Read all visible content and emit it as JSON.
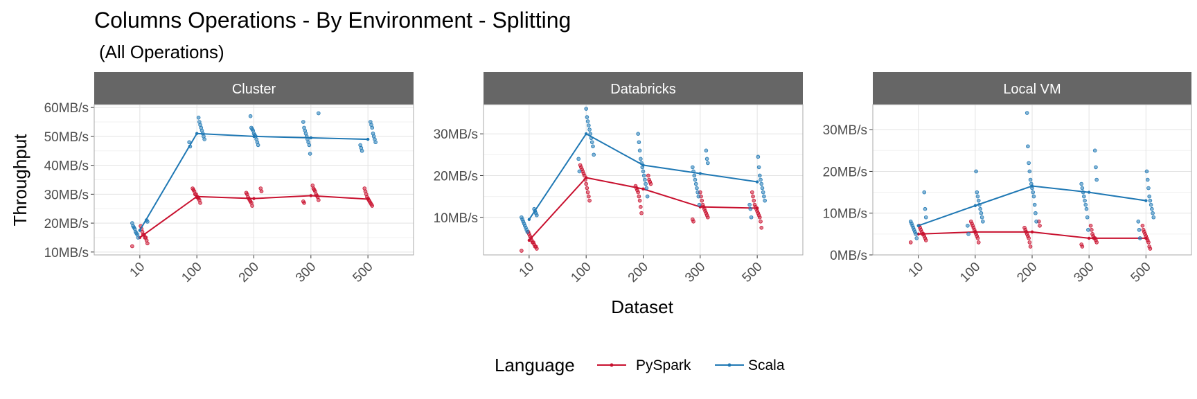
{
  "title": "Columns Operations - By Environment - Splitting",
  "subtitle": "(All Operations)",
  "y_axis_title": "Throughput",
  "x_axis_title": "Dataset",
  "legend": {
    "title": "Language",
    "items": [
      {
        "label": "PySpark",
        "color": "#c8102e"
      },
      {
        "label": "Scala",
        "color": "#1f78b4"
      }
    ]
  },
  "chart_data": [
    {
      "type": "line",
      "panel": "Cluster",
      "categories": [
        "10",
        "100",
        "200",
        "300",
        "500"
      ],
      "ylim": [
        9,
        61
      ],
      "yticks": [
        10,
        20,
        30,
        40,
        50,
        60
      ],
      "ytick_labels": [
        "10MB/s",
        "20MB/s",
        "30MB/s",
        "40MB/s",
        "50MB/s",
        "60MB/s"
      ],
      "grid": true,
      "series": [
        {
          "name": "PySpark",
          "color": "#c8102e",
          "mean": [
            15,
            29.2,
            28.5,
            29.5,
            28.3
          ],
          "points": [
            [
              12,
              13,
              14,
              15,
              15,
              16,
              16,
              17,
              18,
              19
            ],
            [
              27,
              28,
              28.5,
              29,
              29,
              30,
              30,
              31,
              31.5,
              32
            ],
            [
              26,
              27,
              27.5,
              28,
              28.5,
              29,
              30,
              30.5,
              31,
              32
            ],
            [
              27,
              27.5,
              28,
              29,
              29.5,
              30,
              31,
              31.5,
              32,
              33
            ],
            [
              26,
              26.5,
              27,
              27.5,
              28,
              28.5,
              29,
              30,
              31,
              32
            ]
          ]
        },
        {
          "name": "Scala",
          "color": "#1f78b4",
          "mean": [
            17.5,
            51,
            50,
            49.5,
            49
          ],
          "points": [
            [
              15,
              16,
              16.5,
              17,
              18,
              18.5,
              19,
              20,
              20.5,
              21
            ],
            [
              46.5,
              48,
              49,
              50,
              51,
              52,
              53,
              54,
              55,
              56.5
            ],
            [
              47,
              48,
              49,
              50,
              50.5,
              51,
              52,
              52.5,
              53,
              57
            ],
            [
              44,
              47,
              48,
              49,
              50,
              51,
              52,
              53,
              55,
              58
            ],
            [
              45,
              46,
              47,
              48,
              49,
              50,
              51,
              53,
              54,
              55
            ]
          ]
        }
      ]
    },
    {
      "type": "line",
      "panel": "Databricks",
      "categories": [
        "10",
        "100",
        "200",
        "300",
        "500"
      ],
      "ylim": [
        1,
        37
      ],
      "yticks": [
        10,
        20,
        30
      ],
      "ytick_labels": [
        "10MB/s",
        "20MB/s",
        "30MB/s"
      ],
      "grid": true,
      "series": [
        {
          "name": "PySpark",
          "color": "#c8102e",
          "mean": [
            4.5,
            19.5,
            16.8,
            12.5,
            12.2
          ],
          "points": [
            [
              2,
              2.5,
              3,
              3,
              3.5,
              4,
              4,
              4.5,
              5,
              5.5,
              6,
              6.5
            ],
            [
              14,
              15,
              16,
              17,
              18,
              19,
              20,
              20.5,
              21,
              21.5,
              22,
              22.5
            ],
            [
              11,
              12.5,
              14,
              15,
              16,
              16.5,
              17,
              17.5,
              18,
              18.5,
              19,
              20
            ],
            [
              9,
              9.5,
              10,
              10.5,
              11,
              11.5,
              12,
              12.5,
              13,
              14,
              15,
              16
            ],
            [
              7.5,
              9,
              10,
              10.5,
              11,
              11.5,
              12,
              12.5,
              13,
              14,
              15,
              16
            ]
          ]
        },
        {
          "name": "Scala",
          "color": "#1f78b4",
          "mean": [
            9.5,
            30,
            22.5,
            20.5,
            18.5
          ],
          "points": [
            [
              6.5,
              7,
              7.5,
              8,
              8.5,
              9,
              9.5,
              10,
              10.5,
              11,
              11.5,
              12
            ],
            [
              21,
              24,
              25,
              27,
              28,
              29,
              30,
              31,
              32,
              33,
              34,
              36
            ],
            [
              15,
              17,
              18,
              19,
              20,
              21,
              22,
              23,
              24,
              26,
              28,
              30
            ],
            [
              13,
              15,
              16,
              17,
              18,
              19,
              20,
              21,
              22,
              23,
              24,
              26
            ],
            [
              10,
              12,
              13,
              14,
              15,
              16,
              17,
              18,
              19,
              20,
              22,
              24.5
            ]
          ]
        }
      ]
    },
    {
      "type": "line",
      "panel": "Local VM",
      "categories": [
        "10",
        "100",
        "200",
        "300",
        "500"
      ],
      "ylim": [
        0,
        36
      ],
      "yticks": [
        0,
        10,
        20,
        30
      ],
      "ytick_labels": [
        "0MB/s",
        "10MB/s",
        "20MB/s",
        "30MB/s"
      ],
      "grid": true,
      "series": [
        {
          "name": "PySpark",
          "color": "#c8102e",
          "mean": [
            5,
            5.5,
            5.5,
            4,
            4
          ],
          "points": [
            [
              3,
              3.5,
              4,
              4.5,
              5,
              5,
              5.5,
              6,
              6.5,
              7
            ],
            [
              3,
              4,
              4.5,
              5,
              5.5,
              6,
              6.5,
              7,
              7.5,
              8
            ],
            [
              2,
              3,
              4,
              4.5,
              5,
              5.5,
              6,
              6.5,
              7,
              8
            ],
            [
              2,
              2.5,
              3,
              3.5,
              4,
              4,
              4.5,
              5,
              6,
              7
            ],
            [
              1.5,
              2,
              3,
              3.5,
              4,
              4.5,
              5,
              5.5,
              6,
              7
            ]
          ]
        },
        {
          "name": "Scala",
          "color": "#1f78b4",
          "mean": [
            7,
            11.8,
            16.5,
            15,
            13
          ],
          "points": [
            [
              4,
              5,
              5.5,
              6,
              6.5,
              7,
              7.5,
              8,
              9,
              11,
              15
            ],
            [
              5,
              7,
              8,
              9,
              10,
              11,
              12,
              13,
              14,
              15,
              20
            ],
            [
              8,
              10,
              12,
              14,
              15,
              16,
              17,
              18,
              20,
              22,
              26,
              34
            ],
            [
              6,
              9,
              11,
              12,
              13,
              14,
              15,
              16,
              17,
              18,
              21,
              25
            ],
            [
              4,
              6,
              8,
              9,
              10,
              11,
              12,
              13,
              14,
              16,
              18,
              20
            ]
          ]
        }
      ]
    }
  ]
}
